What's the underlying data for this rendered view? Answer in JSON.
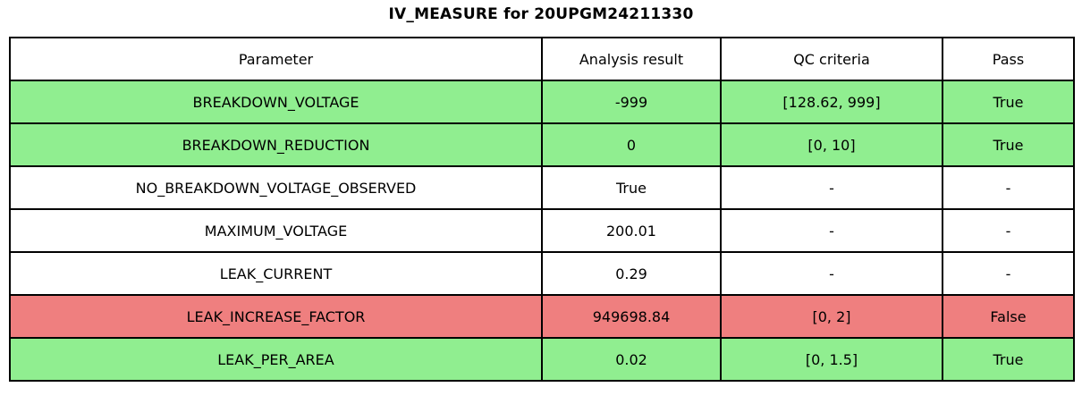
{
  "title": "IV_MEASURE for 20UPGM24211330",
  "colors": {
    "pass_row": "#90ee90",
    "fail_row": "#ef7f7f",
    "neutral_row": "#ffffff",
    "border": "#000000",
    "text": "#000000"
  },
  "chart_data": {
    "type": "table",
    "title": "IV_MEASURE for 20UPGM24211330",
    "columns": [
      "Parameter",
      "Analysis result",
      "QC criteria",
      "Pass"
    ],
    "rows": [
      {
        "cells": [
          "BREAKDOWN_VOLTAGE",
          "-999",
          "[128.62, 999]",
          "True"
        ],
        "status": "pass"
      },
      {
        "cells": [
          "BREAKDOWN_REDUCTION",
          "0",
          "[0, 10]",
          "True"
        ],
        "status": "pass"
      },
      {
        "cells": [
          "NO_BREAKDOWN_VOLTAGE_OBSERVED",
          "True",
          "-",
          "-"
        ],
        "status": "neutral"
      },
      {
        "cells": [
          "MAXIMUM_VOLTAGE",
          "200.01",
          "-",
          "-"
        ],
        "status": "neutral"
      },
      {
        "cells": [
          "LEAK_CURRENT",
          "0.29",
          "-",
          "-"
        ],
        "status": "neutral"
      },
      {
        "cells": [
          "LEAK_INCREASE_FACTOR",
          "949698.84",
          "[0, 2]",
          "False"
        ],
        "status": "fail"
      },
      {
        "cells": [
          "LEAK_PER_AREA",
          "0.02",
          "[0, 1.5]",
          "True"
        ],
        "status": "pass"
      }
    ]
  }
}
